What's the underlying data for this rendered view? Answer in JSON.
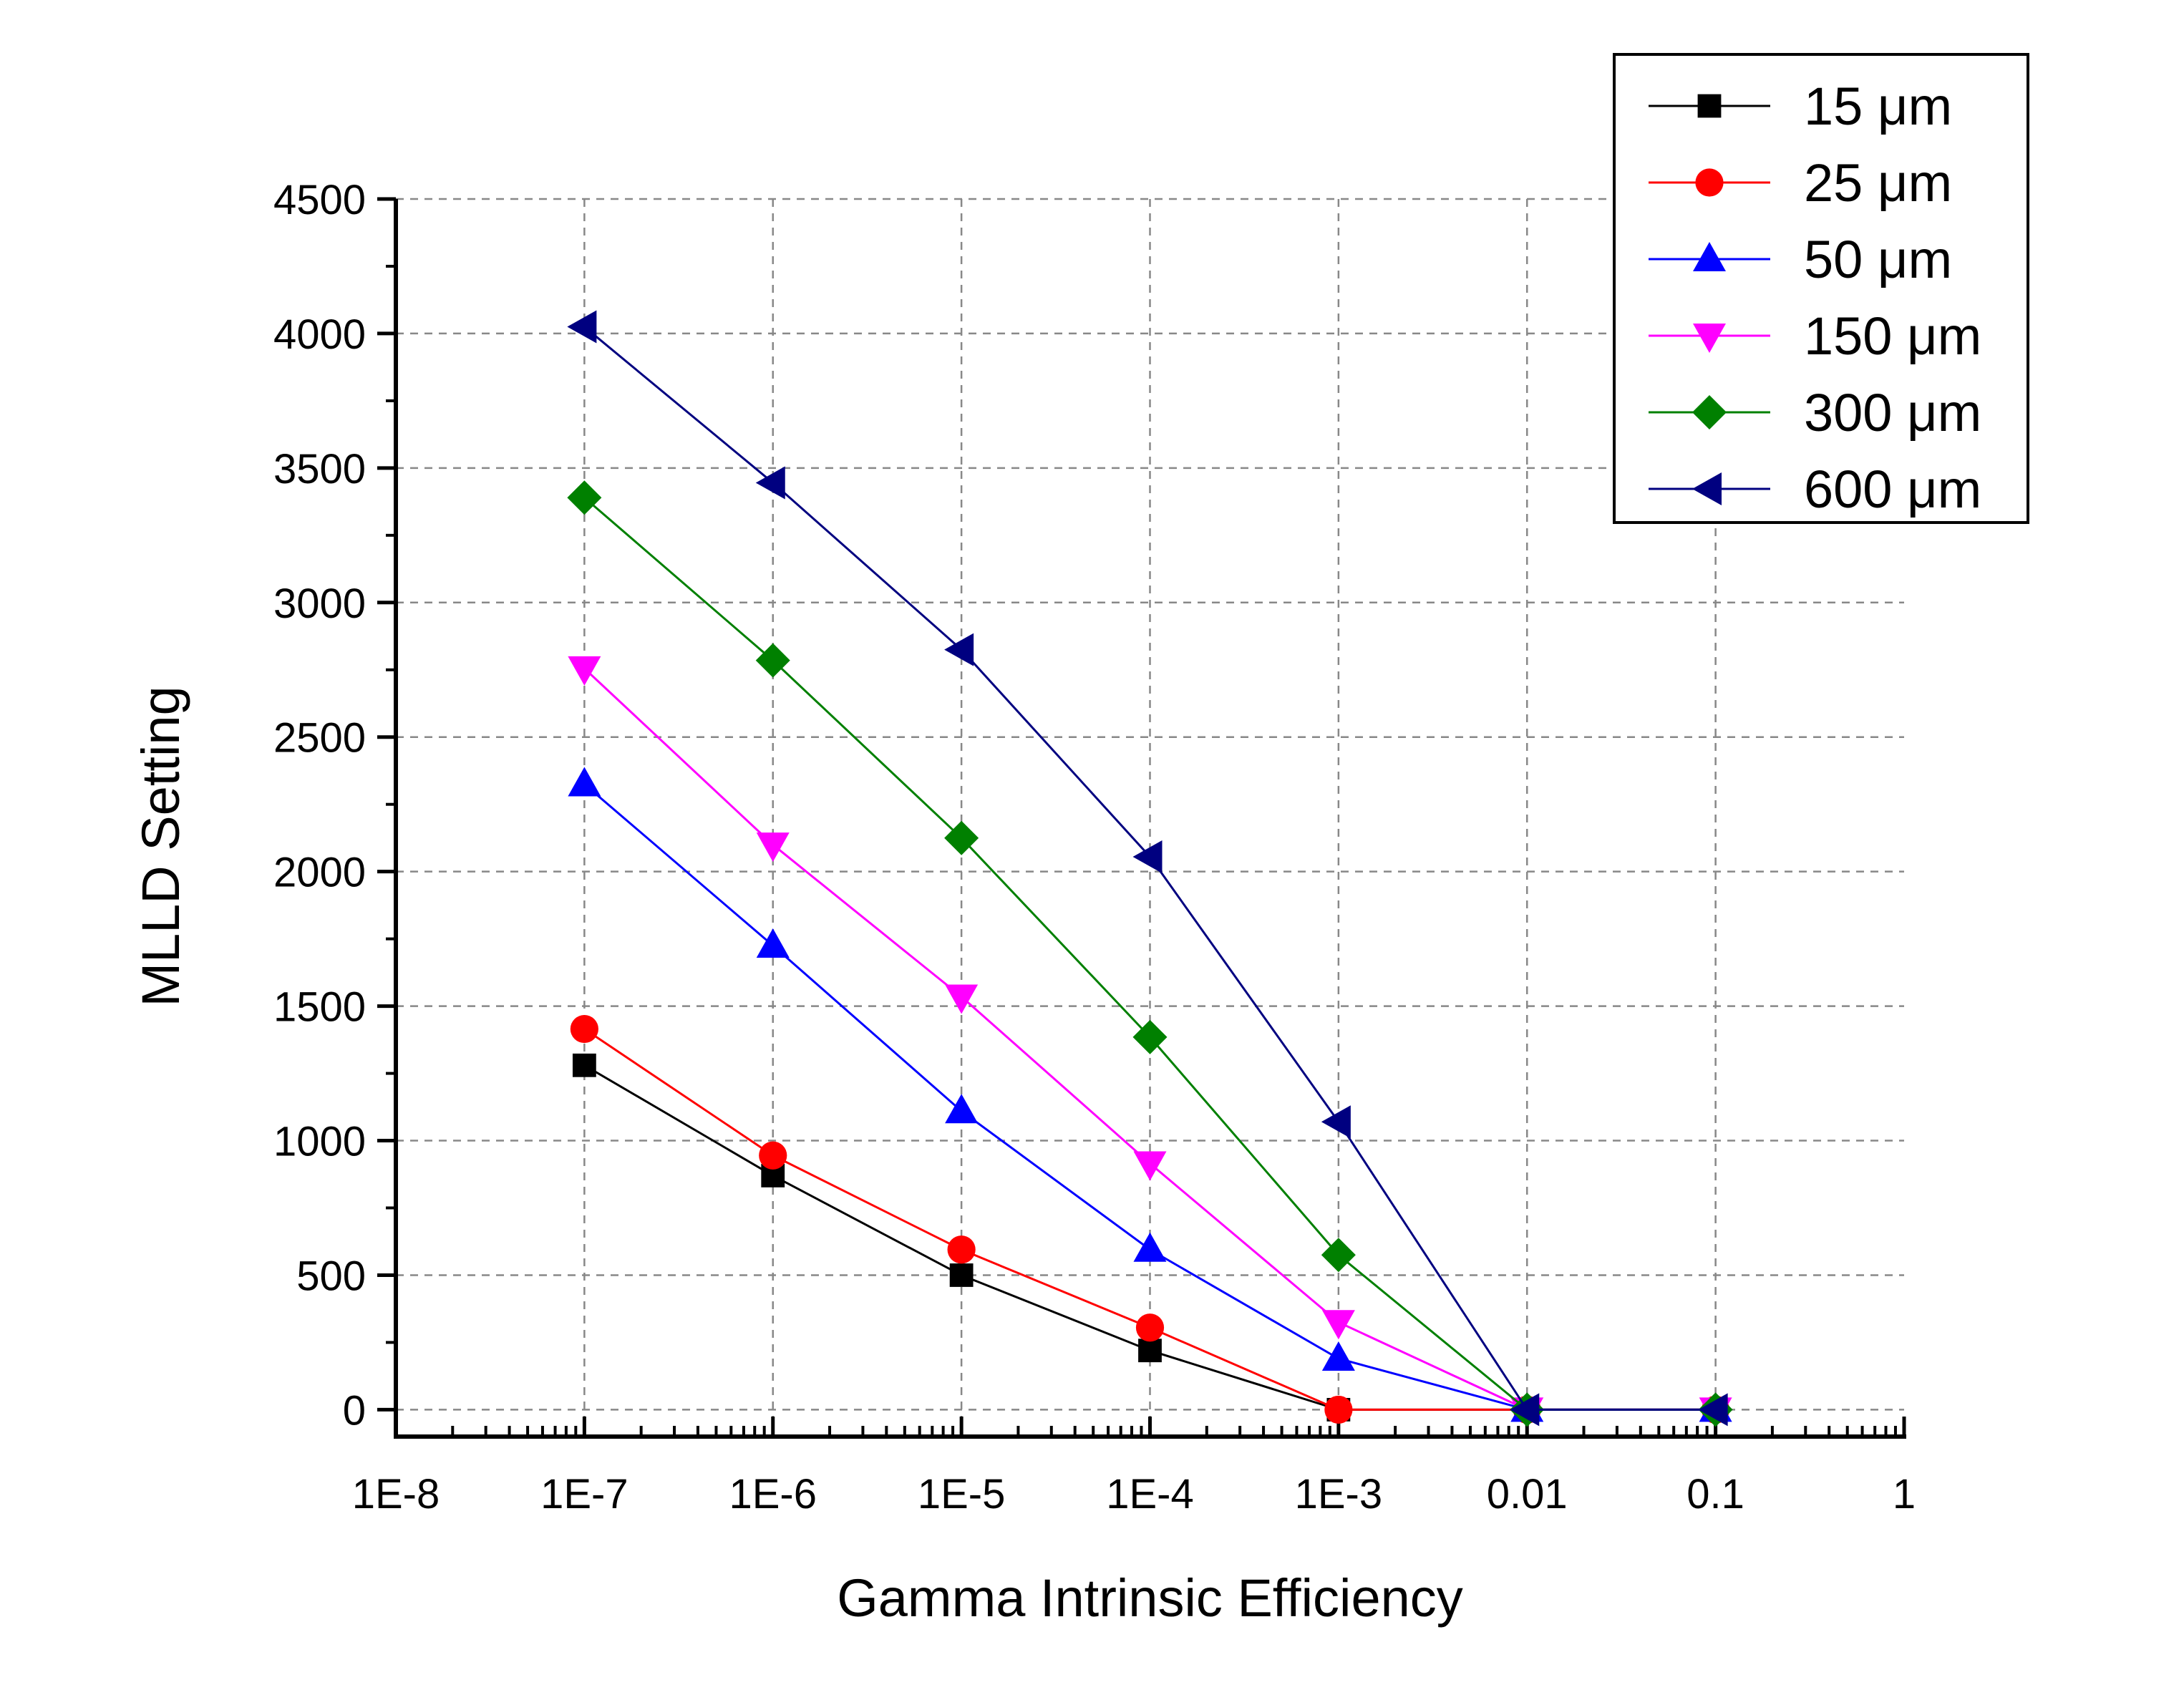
{
  "chart_data": {
    "type": "line",
    "xlabel": "Gamma Intrinsic Efficiency",
    "ylabel": "MLLD Setting",
    "x_scale": "log",
    "xlim": [
      1e-08,
      1
    ],
    "ylim": [
      -100,
      4500
    ],
    "x_ticks": [
      {
        "value": 1e-08,
        "label": "1E-8"
      },
      {
        "value": 1e-07,
        "label": "1E-7"
      },
      {
        "value": 1e-06,
        "label": "1E-6"
      },
      {
        "value": 1e-05,
        "label": "1E-5"
      },
      {
        "value": 0.0001,
        "label": "1E-4"
      },
      {
        "value": 0.001,
        "label": "1E-3"
      },
      {
        "value": 0.01,
        "label": "0.01"
      },
      {
        "value": 0.1,
        "label": "0.1"
      },
      {
        "value": 1,
        "label": "1"
      }
    ],
    "y_ticks": [
      {
        "value": 0,
        "label": "0"
      },
      {
        "value": 500,
        "label": "500"
      },
      {
        "value": 1000,
        "label": "1000"
      },
      {
        "value": 1500,
        "label": "1500"
      },
      {
        "value": 2000,
        "label": "2000"
      },
      {
        "value": 2500,
        "label": "2500"
      },
      {
        "value": 3000,
        "label": "3000"
      },
      {
        "value": 3500,
        "label": "3500"
      },
      {
        "value": 4000,
        "label": "4000"
      },
      {
        "value": 4500,
        "label": "4500"
      }
    ],
    "grid": true,
    "grid_style": "dashed",
    "legend_position": "top-right",
    "x": [
      1e-07,
      1e-06,
      1e-05,
      0.0001,
      0.001,
      0.01,
      0.1
    ],
    "series": [
      {
        "name": "15 μm",
        "color": "#000000",
        "marker": "square",
        "values": [
          1280,
          870,
          500,
          220,
          0,
          0,
          0
        ]
      },
      {
        "name": "25 μm",
        "color": "#ff0000",
        "marker": "circle",
        "values": [
          1415,
          945,
          595,
          305,
          0,
          0,
          0
        ]
      },
      {
        "name": "50 μm",
        "color": "#0000ff",
        "marker": "triangle-up",
        "values": [
          2325,
          1725,
          1110,
          595,
          190,
          0,
          0
        ]
      },
      {
        "name": "150 μm",
        "color": "#ff00ff",
        "marker": "triangle-down",
        "values": [
          2755,
          2100,
          1535,
          915,
          325,
          0,
          0
        ]
      },
      {
        "name": "300 μm",
        "color": "#008000",
        "marker": "diamond",
        "values": [
          3390,
          2785,
          2125,
          1385,
          575,
          0,
          0
        ]
      },
      {
        "name": "600 μm",
        "color": "#000080",
        "marker": "triangle-left",
        "values": [
          4025,
          3445,
          2825,
          2055,
          1070,
          0,
          0
        ]
      }
    ]
  }
}
